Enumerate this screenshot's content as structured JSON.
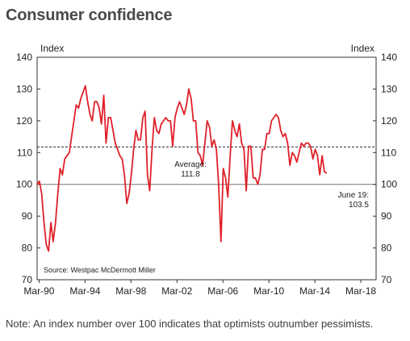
{
  "title": "Consumer confidence",
  "note": "Note: An index number over 100 indicates that optimists outnumber pessimists.",
  "chart_data": {
    "type": "line",
    "title": "Consumer confidence",
    "ylabel_left": "Index",
    "ylabel_right": "Index",
    "ylim": [
      70,
      140
    ],
    "yticks": [
      70,
      80,
      90,
      100,
      110,
      120,
      130,
      140
    ],
    "x_range": [
      1990.0,
      2019.5
    ],
    "x_tick_labels": [
      {
        "label": "Mar-90",
        "x": 1990.17
      },
      {
        "label": "Mar-94",
        "x": 1994.17
      },
      {
        "label": "Mar-98",
        "x": 1998.17
      },
      {
        "label": "Mar-02",
        "x": 2002.17
      },
      {
        "label": "Mar-06",
        "x": 2006.17
      },
      {
        "label": "Mar-10",
        "x": 2010.17
      },
      {
        "label": "Mar-14",
        "x": 2014.17
      },
      {
        "label": "Mar-18",
        "x": 2018.17
      }
    ],
    "reference_lines": [
      {
        "value": 100,
        "style": "solid"
      },
      {
        "value": 111.8,
        "style": "dashed"
      }
    ],
    "annotations": [
      {
        "text_lines": [
          "Average:",
          "111.8"
        ]
      },
      {
        "text_lines": [
          "June 19:",
          "103.5"
        ]
      },
      {
        "text_lines": [
          "Source: Westpac McDermott Miller"
        ]
      }
    ],
    "grid": false,
    "series": [
      {
        "color": "#e0202a",
        "points": [
          [
            1990.0,
            100
          ],
          [
            1990.2,
            101
          ],
          [
            1990.4,
            97
          ],
          [
            1990.6,
            88
          ],
          [
            1990.8,
            81
          ],
          [
            1991.0,
            79
          ],
          [
            1991.2,
            88
          ],
          [
            1991.4,
            82
          ],
          [
            1991.6,
            88
          ],
          [
            1991.8,
            97
          ],
          [
            1992.0,
            105
          ],
          [
            1992.2,
            103
          ],
          [
            1992.4,
            108
          ],
          [
            1992.6,
            109
          ],
          [
            1992.8,
            110
          ],
          [
            1993.0,
            115
          ],
          [
            1993.2,
            120
          ],
          [
            1993.4,
            125
          ],
          [
            1993.6,
            124
          ],
          [
            1993.8,
            127
          ],
          [
            1994.0,
            129
          ],
          [
            1994.2,
            131
          ],
          [
            1994.4,
            126
          ],
          [
            1994.6,
            122
          ],
          [
            1994.8,
            120
          ],
          [
            1995.0,
            126
          ],
          [
            1995.2,
            126
          ],
          [
            1995.4,
            124
          ],
          [
            1995.6,
            119
          ],
          [
            1995.8,
            128
          ],
          [
            1996.0,
            113
          ],
          [
            1996.2,
            121
          ],
          [
            1996.4,
            121
          ],
          [
            1996.6,
            117
          ],
          [
            1996.8,
            113
          ],
          [
            1997.0,
            111
          ],
          [
            1997.2,
            109
          ],
          [
            1997.4,
            108
          ],
          [
            1997.6,
            103
          ],
          [
            1997.8,
            94
          ],
          [
            1998.0,
            97
          ],
          [
            1998.2,
            103
          ],
          [
            1998.4,
            111
          ],
          [
            1998.6,
            117
          ],
          [
            1998.8,
            114
          ],
          [
            1999.0,
            114
          ],
          [
            1999.2,
            121
          ],
          [
            1999.4,
            123
          ],
          [
            1999.6,
            103
          ],
          [
            1999.8,
            98
          ],
          [
            2000.0,
            111
          ],
          [
            2000.2,
            121
          ],
          [
            2000.4,
            117
          ],
          [
            2000.6,
            116
          ],
          [
            2000.8,
            119
          ],
          [
            2001.0,
            120
          ],
          [
            2001.2,
            121
          ],
          [
            2001.4,
            120
          ],
          [
            2001.6,
            120
          ],
          [
            2001.8,
            112
          ],
          [
            2002.0,
            121
          ],
          [
            2002.2,
            124
          ],
          [
            2002.4,
            126
          ],
          [
            2002.6,
            124
          ],
          [
            2002.8,
            122
          ],
          [
            2003.0,
            125
          ],
          [
            2003.2,
            130
          ],
          [
            2003.4,
            127
          ],
          [
            2003.6,
            120
          ],
          [
            2003.8,
            120
          ],
          [
            2004.0,
            110
          ],
          [
            2004.2,
            109
          ],
          [
            2004.4,
            106
          ],
          [
            2004.6,
            113
          ],
          [
            2004.8,
            120
          ],
          [
            2005.0,
            118
          ],
          [
            2005.2,
            112
          ],
          [
            2005.4,
            114
          ],
          [
            2005.6,
            111
          ],
          [
            2005.8,
            100
          ],
          [
            2006.0,
            82
          ],
          [
            2006.2,
            105
          ],
          [
            2006.4,
            102
          ],
          [
            2006.6,
            96
          ],
          [
            2006.8,
            109
          ],
          [
            2007.0,
            120
          ],
          [
            2007.2,
            117
          ],
          [
            2007.4,
            115
          ],
          [
            2007.6,
            119
          ],
          [
            2007.8,
            113
          ],
          [
            2008.0,
            111
          ],
          [
            2008.2,
            98
          ],
          [
            2008.4,
            112
          ],
          [
            2008.6,
            112
          ],
          [
            2008.8,
            102
          ],
          [
            2009.0,
            102
          ],
          [
            2009.2,
            100
          ],
          [
            2009.4,
            103
          ],
          [
            2009.6,
            111
          ],
          [
            2009.8,
            111
          ],
          [
            2010.0,
            116
          ],
          [
            2010.2,
            116
          ],
          [
            2010.4,
            120
          ],
          [
            2010.6,
            121
          ],
          [
            2010.8,
            122
          ],
          [
            2011.0,
            121
          ],
          [
            2011.2,
            117
          ],
          [
            2011.4,
            115
          ],
          [
            2011.6,
            116
          ],
          [
            2011.8,
            113
          ],
          [
            2012.0,
            106
          ],
          [
            2012.2,
            110
          ],
          [
            2012.4,
            109
          ],
          [
            2012.6,
            107
          ],
          [
            2012.8,
            110
          ],
          [
            2013.0,
            113
          ],
          [
            2013.2,
            112
          ],
          [
            2013.4,
            113
          ],
          [
            2013.6,
            113
          ],
          [
            2013.8,
            112
          ],
          [
            2014.0,
            108
          ],
          [
            2014.2,
            111
          ],
          [
            2014.4,
            109
          ],
          [
            2014.6,
            103
          ],
          [
            2014.8,
            109
          ],
          [
            2015.0,
            104
          ],
          [
            2015.2,
            103.5
          ]
        ]
      }
    ]
  }
}
